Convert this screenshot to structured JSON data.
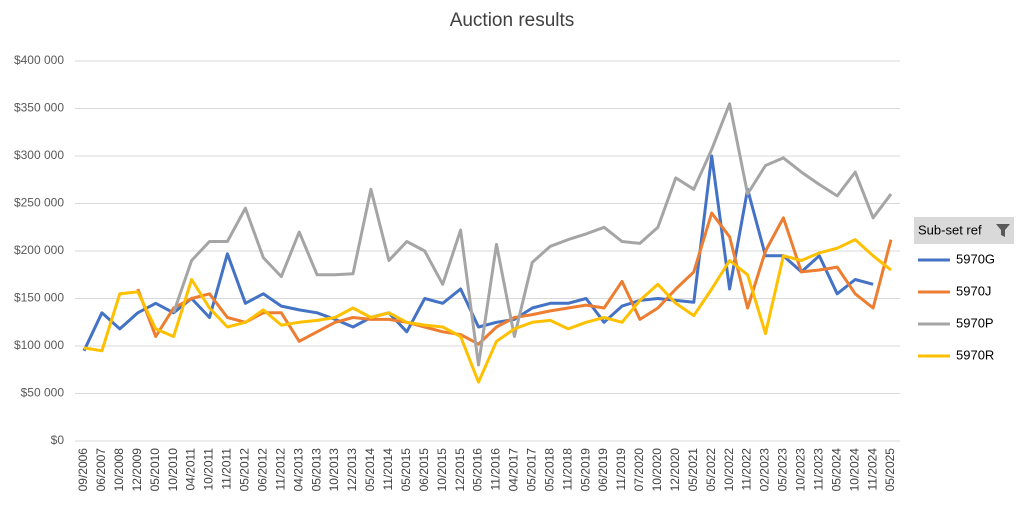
{
  "chart_data": {
    "type": "line",
    "title": "Auction results",
    "legend_title": "Sub-set ref",
    "categories": [
      "09/2006",
      "06/2007",
      "10/2008",
      "12/2009",
      "05/2010",
      "10/2010",
      "04/2011",
      "10/2011",
      "11/2011",
      "05/2012",
      "06/2012",
      "11/2012",
      "04/2013",
      "05/2013",
      "10/2013",
      "12/2013",
      "05/2014",
      "11/2014",
      "05/2015",
      "06/2015",
      "10/2015",
      "12/2015",
      "05/2016",
      "11/2016",
      "04/2017",
      "05/2017",
      "05/2018",
      "11/2018",
      "05/2019",
      "06/2019",
      "11/2019",
      "07/2020",
      "10/2020",
      "12/2020",
      "05/2021",
      "05/2022",
      "10/2022",
      "11/2022",
      "02/2023",
      "05/2023",
      "10/2023",
      "11/2023",
      "05/2024",
      "10/2024",
      "11/2024",
      "05/2025"
    ],
    "series": [
      {
        "name": "5970G",
        "color": "#4472c4",
        "values": [
          95000,
          135000,
          118000,
          135000,
          145000,
          135000,
          150000,
          130000,
          197000,
          145000,
          155000,
          142000,
          138000,
          135000,
          128000,
          120000,
          130000,
          135000,
          115000,
          150000,
          145000,
          160000,
          120000,
          125000,
          128000,
          140000,
          145000,
          145000,
          150000,
          125000,
          142000,
          148000,
          150000,
          148000,
          146000,
          300000,
          160000,
          265000,
          195000,
          195000,
          178000,
          195000,
          155000,
          170000,
          165000,
          null
        ]
      },
      {
        "name": "5970J",
        "color": "#ed7d31",
        "values": [
          null,
          null,
          null,
          160000,
          110000,
          140000,
          150000,
          155000,
          130000,
          125000,
          135000,
          135000,
          105000,
          115000,
          125000,
          130000,
          128000,
          128000,
          125000,
          120000,
          115000,
          112000,
          102000,
          120000,
          130000,
          133000,
          137000,
          140000,
          143000,
          140000,
          168000,
          128000,
          140000,
          160000,
          178000,
          240000,
          215000,
          140000,
          200000,
          235000,
          178000,
          180000,
          183000,
          155000,
          140000,
          212000
        ]
      },
      {
        "name": "5970P",
        "color": "#a5a5a5",
        "values": [
          null,
          null,
          null,
          null,
          null,
          135000,
          190000,
          210000,
          210000,
          245000,
          193000,
          173000,
          220000,
          175000,
          175000,
          176000,
          265000,
          190000,
          210000,
          200000,
          165000,
          222000,
          80000,
          207000,
          110000,
          188000,
          205000,
          212000,
          218000,
          225000,
          210000,
          208000,
          225000,
          277000,
          265000,
          307000,
          355000,
          260000,
          290000,
          298000,
          283000,
          270000,
          258000,
          283000,
          235000,
          260000
        ]
      },
      {
        "name": "5970R",
        "color": "#ffc000",
        "values": [
          98000,
          95000,
          155000,
          157000,
          118000,
          110000,
          170000,
          140000,
          120000,
          125000,
          138000,
          122000,
          125000,
          127000,
          130000,
          140000,
          130000,
          135000,
          125000,
          122000,
          120000,
          110000,
          62000,
          105000,
          118000,
          125000,
          127000,
          118000,
          125000,
          130000,
          125000,
          148000,
          165000,
          145000,
          132000,
          160000,
          190000,
          175000,
          113000,
          195000,
          190000,
          198000,
          203000,
          212000,
          195000,
          180000
        ]
      }
    ],
    "ylim": [
      0,
      400000
    ],
    "yticks": [
      {
        "value": 0,
        "label": "$0"
      },
      {
        "value": 50000,
        "label": "$50 000"
      },
      {
        "value": 100000,
        "label": "$100 000"
      },
      {
        "value": 150000,
        "label": "$150 000"
      },
      {
        "value": 200000,
        "label": "$200 000"
      },
      {
        "value": 250000,
        "label": "$250 000"
      },
      {
        "value": 300000,
        "label": "$300 000"
      },
      {
        "value": 350000,
        "label": "$350 000"
      },
      {
        "value": 400000,
        "label": "$400 000"
      }
    ],
    "grid": true
  }
}
